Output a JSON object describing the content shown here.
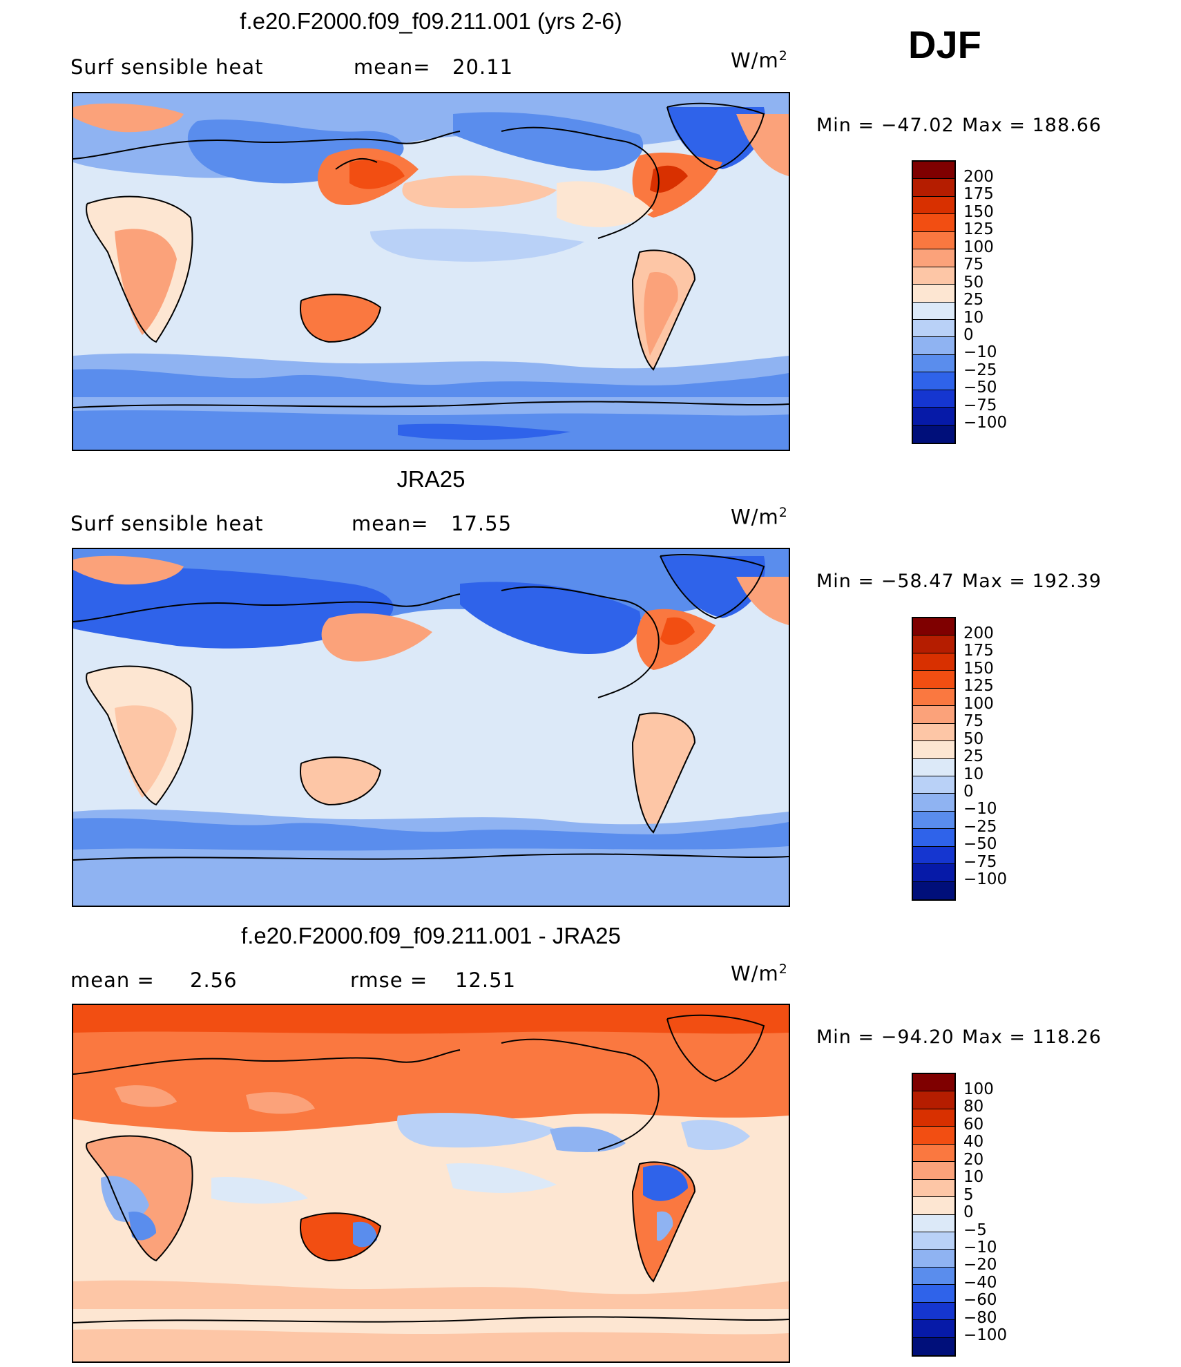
{
  "season": "DJF",
  "units_base": "W/m",
  "units_sup": "2",
  "panels": [
    {
      "title": "f.e20.F2000.f09_f09.211.001 (yrs 2-6)",
      "left_label": "Surf  sensible  heat",
      "stat1_label": "mean=",
      "stat1_value": "20.11",
      "stat2_label": "",
      "stat2_value": "",
      "min_label": "Min  =  −47.02",
      "max_label": "Max  =  188.66",
      "levels": [
        "200",
        "175",
        "150",
        "125",
        "100",
        "75",
        "50",
        "25",
        "10",
        "0",
        "−10",
        "−25",
        "−50",
        "−75",
        "−100"
      ],
      "colors": [
        "#7f0000",
        "#b51d00",
        "#d83000",
        "#f24e12",
        "#fa7840",
        "#fba27a",
        "#fdc6a6",
        "#fde6d2",
        "#dce9f8",
        "#b9d1f7",
        "#8fb3f2",
        "#5a8ded",
        "#2f63ea",
        "#1536d0",
        "#061aa8",
        "#000f7a"
      ]
    },
    {
      "title": "JRA25",
      "left_label": "Surf  sensible  heat",
      "stat1_label": "mean=",
      "stat1_value": "17.55",
      "stat2_label": "",
      "stat2_value": "",
      "min_label": "Min  =  −58.47",
      "max_label": "Max  =  192.39",
      "levels": [
        "200",
        "175",
        "150",
        "125",
        "100",
        "75",
        "50",
        "25",
        "10",
        "0",
        "−10",
        "−25",
        "−50",
        "−75",
        "−100"
      ],
      "colors": [
        "#7f0000",
        "#b51d00",
        "#d83000",
        "#f24e12",
        "#fa7840",
        "#fba27a",
        "#fdc6a6",
        "#fde6d2",
        "#dce9f8",
        "#b9d1f7",
        "#8fb3f2",
        "#5a8ded",
        "#2f63ea",
        "#1536d0",
        "#061aa8",
        "#000f7a"
      ]
    },
    {
      "title": "f.e20.F2000.f09_f09.211.001 - JRA25",
      "left_label": "mean  =",
      "stat1_label": "",
      "stat1_value": "2.56",
      "stat2_label": "rmse  =",
      "stat2_value": "12.51",
      "min_label": "Min  =  −94.20",
      "max_label": "Max  =  118.26",
      "levels": [
        "100",
        "80",
        "60",
        "40",
        "20",
        "10",
        "5",
        "0",
        "−5",
        "−10",
        "−20",
        "−40",
        "−60",
        "−80",
        "−100"
      ],
      "colors": [
        "#7f0000",
        "#b51d00",
        "#d83000",
        "#f24e12",
        "#fa7840",
        "#fba27a",
        "#fdc6a6",
        "#fde6d2",
        "#dce9f8",
        "#b9d1f7",
        "#8fb3f2",
        "#5a8ded",
        "#2f63ea",
        "#1536d0",
        "#061aa8",
        "#000f7a"
      ]
    }
  ]
}
